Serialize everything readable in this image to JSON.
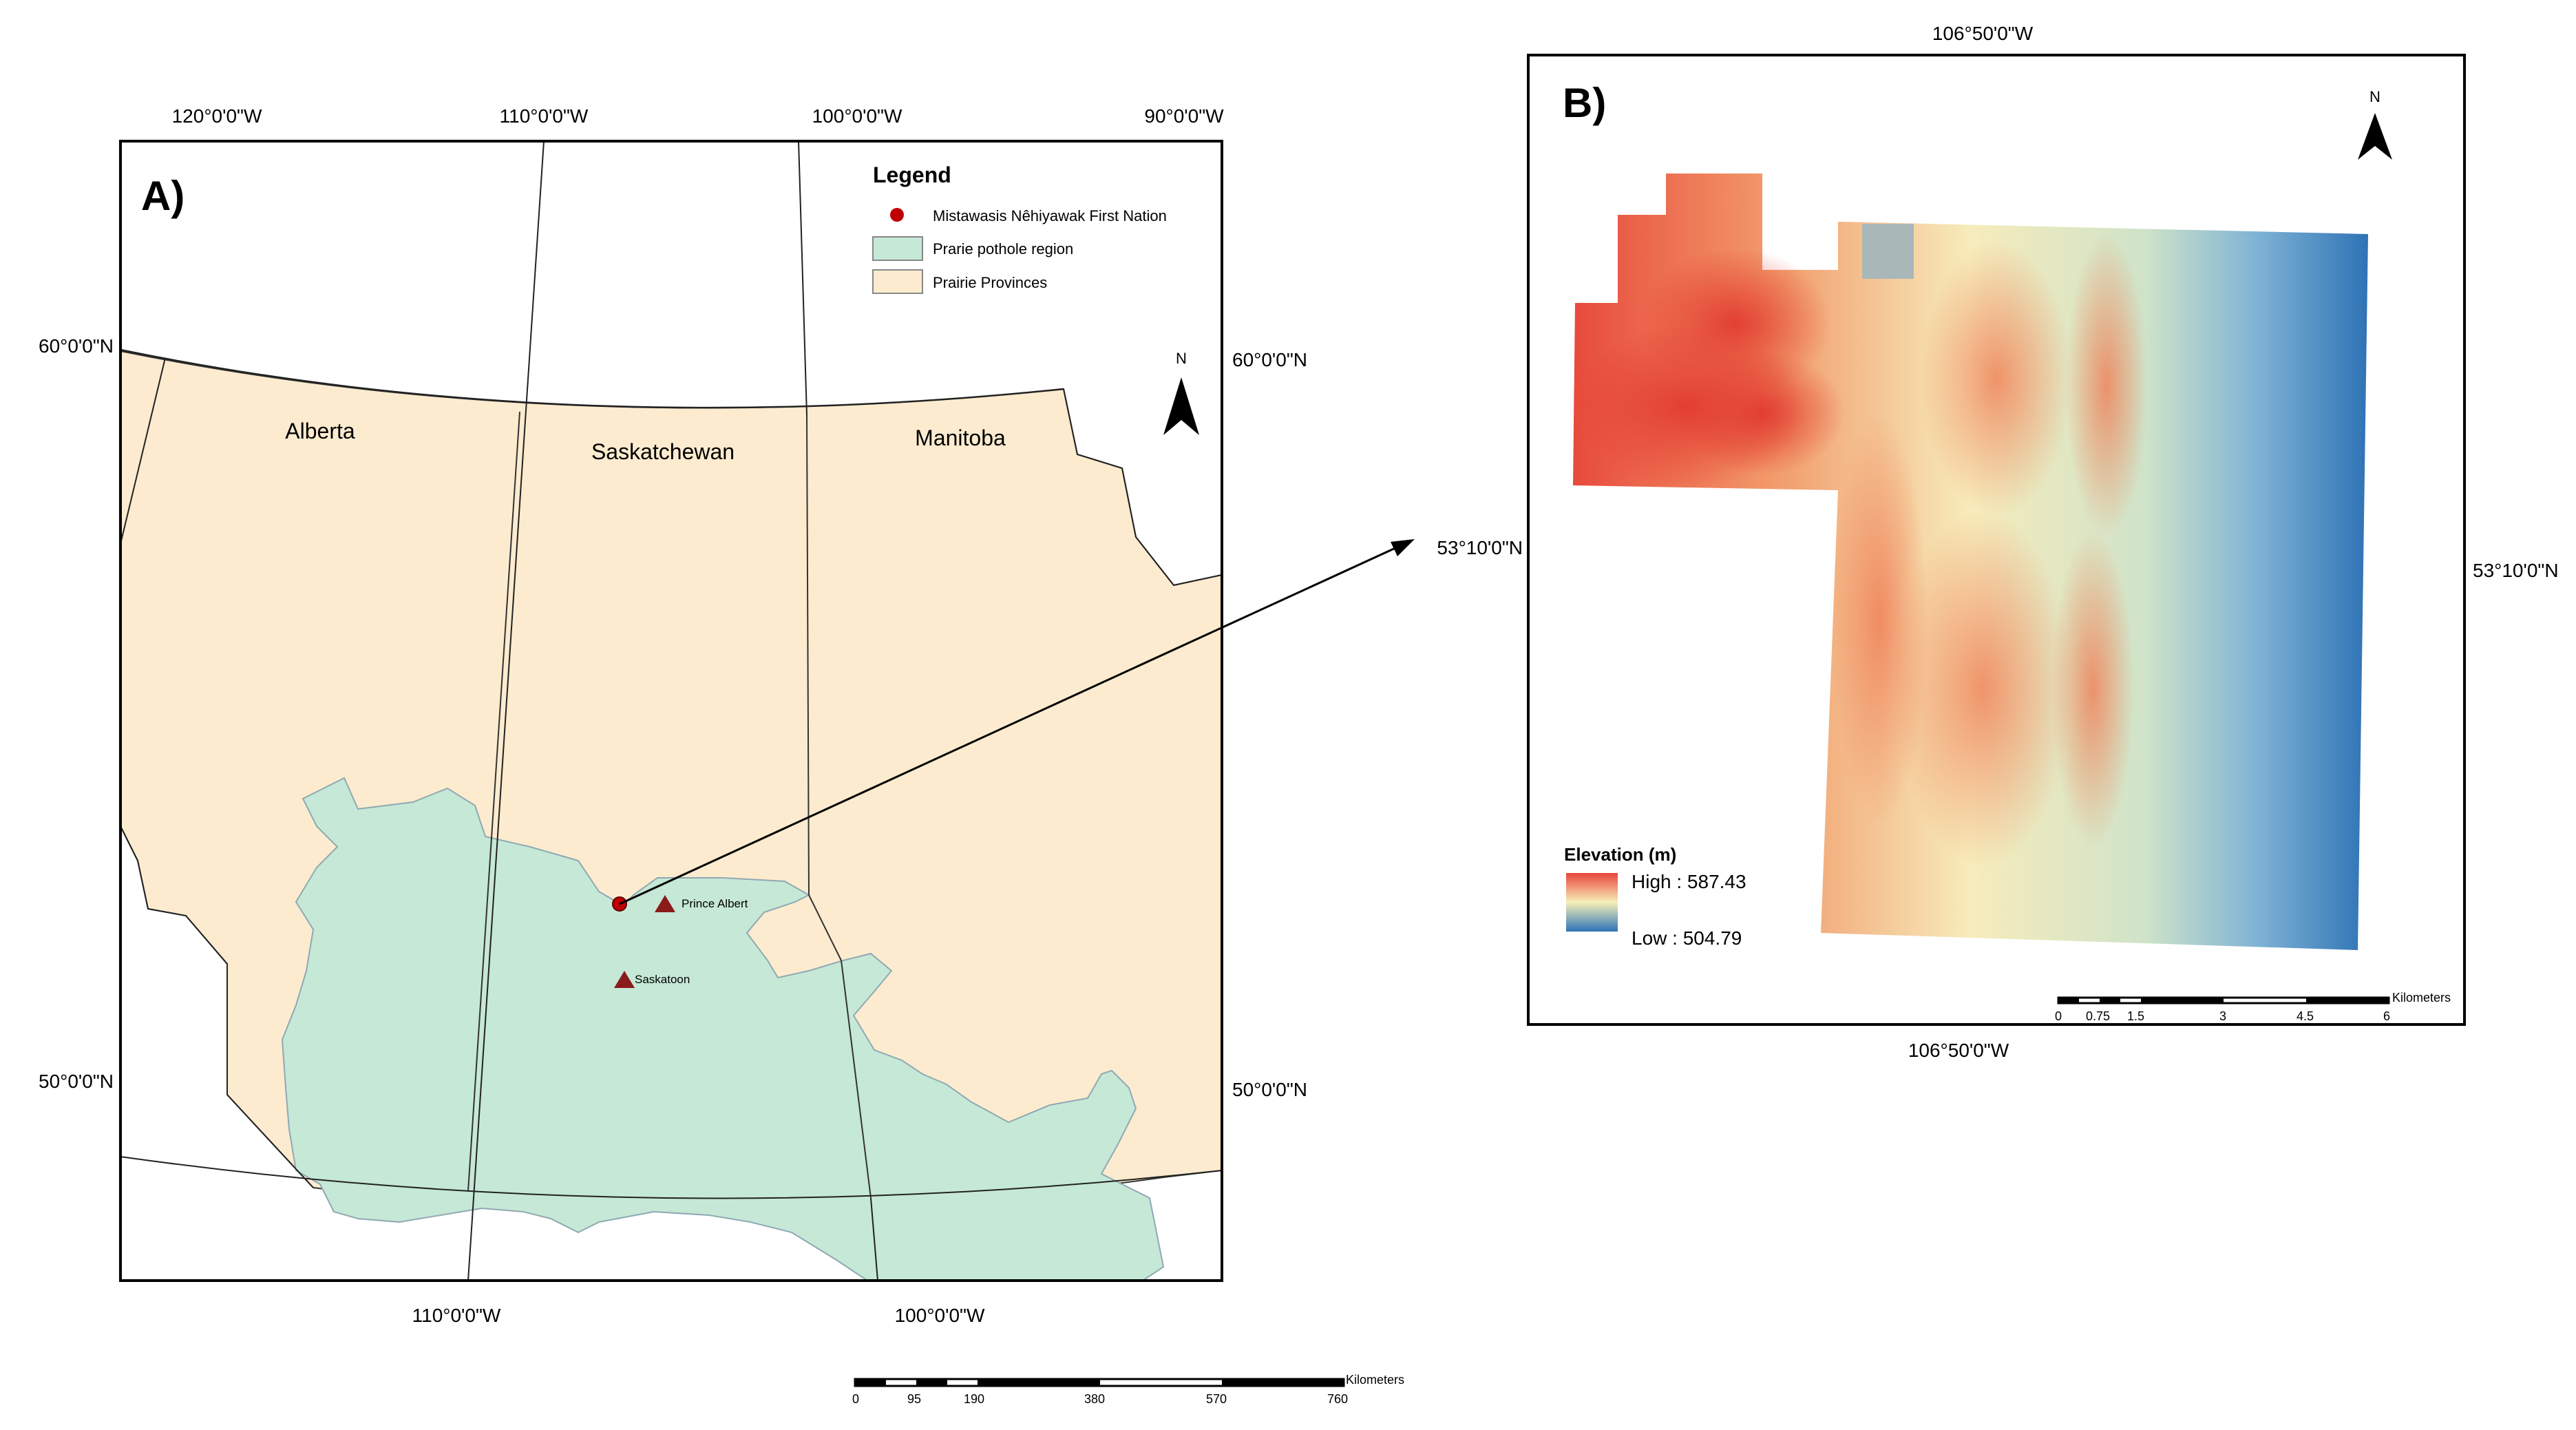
{
  "panel_a": {
    "label": "A)",
    "top_lon_labels": [
      "120°0'0\"W",
      "110°0'0\"W",
      "100°0'0\"W",
      "90°0'0\"W"
    ],
    "bottom_lon_labels": [
      "110°0'0\"W",
      "100°0'0\"W"
    ],
    "left_lat_labels": [
      "60°0'0\"N",
      "50°0'0\"N"
    ],
    "right_lat_labels": [
      "60°0'0\"N",
      "50°0'0\"N"
    ],
    "provinces": [
      "Alberta",
      "Saskatchewan",
      "Manitoba"
    ],
    "cities": [
      "Prince Albert",
      "Saskatoon"
    ],
    "north": "N",
    "legend": {
      "title": "Legend",
      "items": [
        "Mistawasis Nêhiyawak First Nation",
        "Prarie pothole region",
        "Prairie Provinces"
      ]
    },
    "scalebar": {
      "unit": "Kilometers",
      "ticks": [
        "0",
        "95",
        "190",
        "380",
        "570",
        "760"
      ]
    }
  },
  "panel_b": {
    "label": "B)",
    "top_lon_label": "106°50'0\"W",
    "bottom_lon_label": "106°50'0\"W",
    "left_lat_label": "53°10'0\"N",
    "right_lat_label": "53°10'0\"N",
    "north": "N",
    "elevation": {
      "title": "Elevation (m)",
      "high": "High : 587.43",
      "low": "Low : 504.79"
    },
    "scalebar": {
      "unit": "Kilometers",
      "ticks": [
        "0",
        "0.75",
        "1.5",
        "3",
        "4.5",
        "6"
      ]
    }
  },
  "colors": {
    "province_fill": "#fcebcf",
    "pothole_fill": "#c6e8d6",
    "pothole_outline": "#8fa9b3",
    "first_nation_marker": "#c00000",
    "city_marker": "#8b1a1a",
    "elev_high": "#e8433a",
    "elev_mid": "#f7f0b8",
    "elev_low": "#2e73b8"
  }
}
